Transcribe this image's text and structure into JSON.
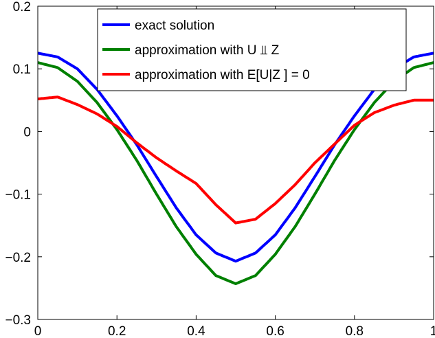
{
  "chart_data": {
    "type": "line",
    "title": "",
    "xlabel": "",
    "ylabel": "",
    "xlim": [
      0,
      1
    ],
    "ylim": [
      -0.3,
      0.2
    ],
    "grid": false,
    "legend_position": "top-center",
    "x_ticks": [
      {
        "value": 0,
        "label": "0"
      },
      {
        "value": 0.2,
        "label": "0.2"
      },
      {
        "value": 0.4,
        "label": "0.4"
      },
      {
        "value": 0.6,
        "label": "0.6"
      },
      {
        "value": 0.8,
        "label": "0.8"
      },
      {
        "value": 1,
        "label": "1"
      }
    ],
    "y_ticks": [
      {
        "value": -0.3,
        "label": "−0.3"
      },
      {
        "value": -0.2,
        "label": "−0.2"
      },
      {
        "value": -0.1,
        "label": "−0.1"
      },
      {
        "value": 0,
        "label": "0"
      },
      {
        "value": 0.1,
        "label": "0.1"
      },
      {
        "value": 0.2,
        "label": "0.2"
      }
    ],
    "x": [
      0,
      0.05,
      0.1,
      0.15,
      0.2,
      0.25,
      0.3,
      0.35,
      0.4,
      0.45,
      0.5,
      0.55,
      0.6,
      0.65,
      0.7,
      0.75,
      0.8,
      0.85,
      0.9,
      0.95,
      1
    ],
    "series": [
      {
        "name": "exact solution",
        "color": "#0000ff",
        "values": [
          0.125,
          0.119,
          0.1,
          0.067,
          0.025,
          -0.021,
          -0.072,
          -0.122,
          -0.165,
          -0.194,
          -0.207,
          -0.194,
          -0.165,
          -0.122,
          -0.072,
          -0.021,
          0.025,
          0.067,
          0.1,
          0.119,
          0.125
        ]
      },
      {
        "name": "approximation with U ⫫ Z",
        "color": "#008000",
        "values": [
          0.11,
          0.102,
          0.08,
          0.046,
          0.003,
          -0.046,
          -0.1,
          -0.152,
          -0.196,
          -0.23,
          -0.243,
          -0.23,
          -0.196,
          -0.152,
          -0.1,
          -0.046,
          0.003,
          0.046,
          0.08,
          0.102,
          0.11
        ]
      },
      {
        "name": "approximation with E[U|Z ] = 0",
        "color": "#ff0000",
        "values": [
          0.052,
          0.055,
          0.043,
          0.028,
          0.008,
          -0.018,
          -0.042,
          -0.063,
          -0.083,
          -0.117,
          -0.146,
          -0.14,
          -0.115,
          -0.085,
          -0.05,
          -0.02,
          0.01,
          0.03,
          0.042,
          0.05,
          0.05
        ]
      }
    ]
  }
}
